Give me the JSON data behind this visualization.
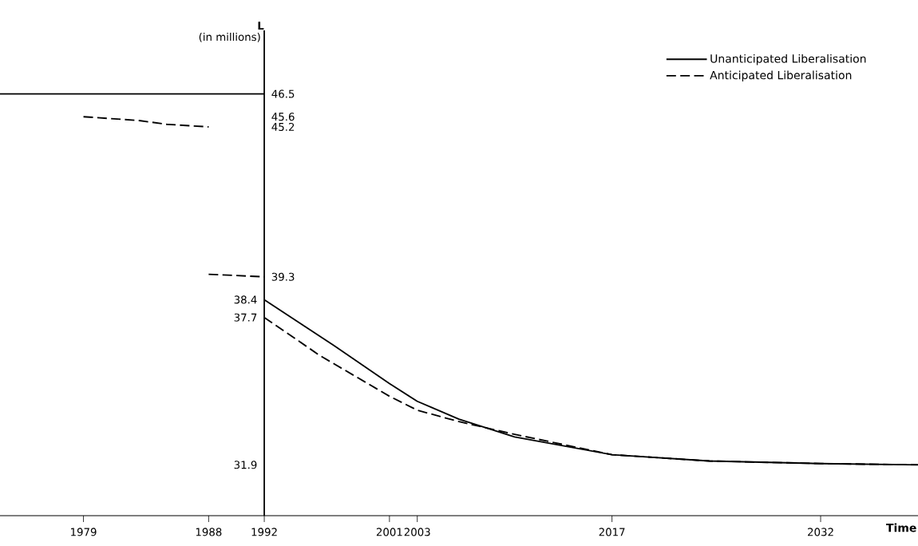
{
  "chart_data": {
    "type": "line",
    "xlabel": "Time",
    "ylabel": "L",
    "annotations": [
      "(in millions)"
    ],
    "xlim": [
      1973,
      2039
    ],
    "ylim": [
      29.9,
      49.0
    ],
    "y2lim": [
      29.9,
      49.0
    ],
    "xticks": [
      1979,
      1988,
      1992,
      2001,
      2003,
      2017,
      2032
    ],
    "yticks": [
      38.4,
      37.7,
      31.9
    ],
    "y2ticks": [
      46.5,
      45.6,
      45.2,
      39.3
    ],
    "ref_lines": [
      {
        "axis": "x",
        "value": 1992,
        "color": "#000000",
        "line_style": "solid"
      }
    ],
    "legend": "top right",
    "grid": false,
    "marker": "none",
    "series": [
      {
        "name": "Unanticipated Liberalisation",
        "color": "#000000",
        "line_style": "solid",
        "x": [
          1973,
          1992
        ],
        "values": [
          46.5,
          46.5
        ]
      },
      {
        "name": "Anticipated Liberalisation",
        "color": "#000000",
        "line_style": "dashed",
        "x": [
          1992,
          1996,
          2001,
          2003,
          2006,
          2010,
          2017,
          2024,
          2032,
          2039
        ],
        "values": [
          37.7,
          36.2,
          34.6,
          34.05,
          33.6,
          33.1,
          32.3,
          32.05,
          31.95,
          31.9
        ]
      },
      {
        "color": "#000000",
        "line_style": "solid",
        "x": [
          1992,
          1997,
          2001,
          2003,
          2006,
          2010,
          2017,
          2024,
          2032,
          2039
        ],
        "values": [
          38.4,
          36.6,
          35.1,
          34.4,
          33.7,
          33.0,
          32.3,
          32.05,
          31.95,
          31.9
        ]
      },
      {
        "color": "#000000",
        "line_style": "dashed",
        "x": [
          1979,
          1983,
          1985,
          1988
        ],
        "values": [
          45.6,
          45.45,
          45.3,
          45.2
        ]
      },
      {
        "color": "#000000",
        "line_style": "dashed",
        "x": [
          1988,
          1992
        ],
        "values": [
          39.4,
          39.3
        ]
      }
    ]
  }
}
